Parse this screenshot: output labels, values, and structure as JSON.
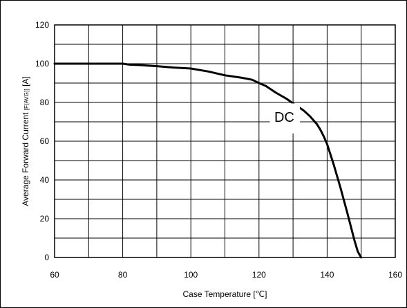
{
  "chart_data": {
    "type": "line",
    "xlabel": "Case Temperature [℃]",
    "ylabel": "Average Forward Current",
    "ylabel_sub": "[F(AVG)]",
    "ylabel_unit": "[A]",
    "xlim": [
      60,
      160
    ],
    "ylim": [
      0,
      120
    ],
    "x_ticks": [
      60,
      80,
      100,
      120,
      140,
      160
    ],
    "y_ticks": [
      0,
      20,
      40,
      60,
      80,
      100,
      120
    ],
    "grid": true,
    "x_minor_step": 10,
    "y_minor_step": 10,
    "annotation": "DC",
    "series": [
      {
        "x": [
          60,
          70,
          80,
          82,
          85,
          90,
          95,
          100,
          105,
          110,
          115,
          118,
          120,
          122,
          125,
          128,
          130,
          133,
          135,
          137,
          138,
          139,
          140,
          142,
          144,
          146,
          148,
          149,
          150
        ],
        "y": [
          100,
          100,
          100,
          99.5,
          99.3,
          98.7,
          98,
          97.5,
          96,
          94,
          92.7,
          91.7,
          90,
          88.5,
          85,
          82,
          79.5,
          76,
          72.8,
          68.8,
          66,
          62.5,
          58.5,
          47.5,
          35.5,
          22.5,
          9,
          3,
          0
        ],
        "color": "#000000"
      }
    ]
  }
}
